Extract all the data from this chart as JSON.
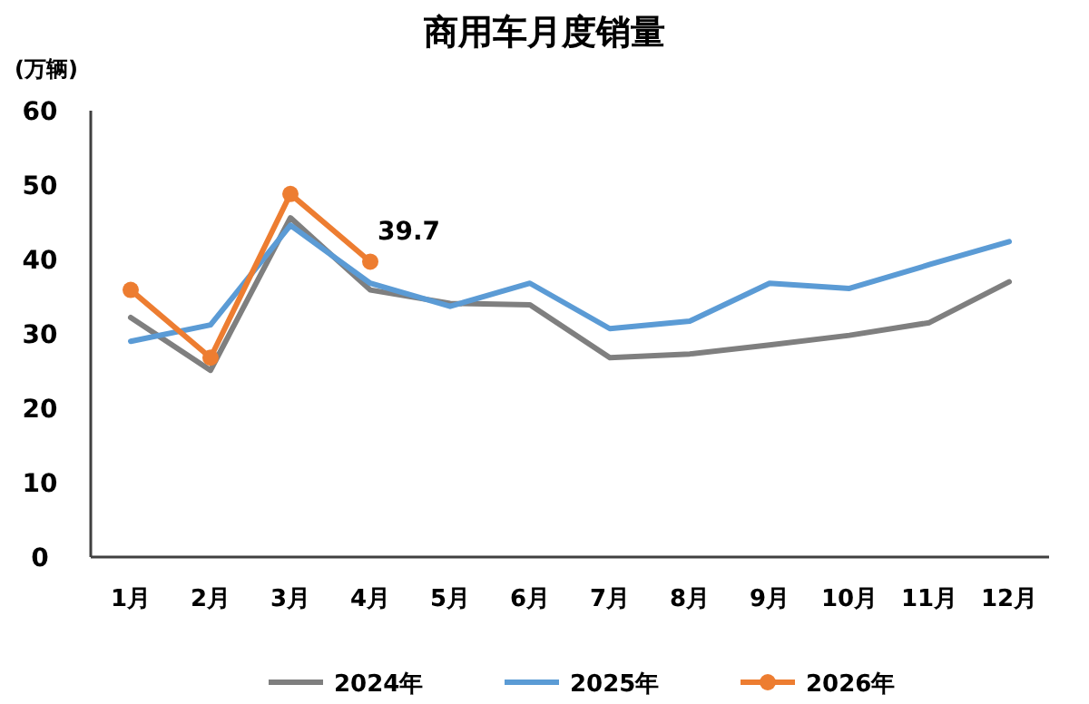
{
  "chart_data": {
    "type": "line",
    "title": "商用车月度销量",
    "ylabel": "(万辆)",
    "categories": [
      "1月",
      "2月",
      "3月",
      "4月",
      "5月",
      "6月",
      "7月",
      "8月",
      "9月",
      "10月",
      "11月",
      "12月"
    ],
    "ylim": [
      0,
      60
    ],
    "yticks": [
      0,
      10,
      20,
      30,
      40,
      50,
      60
    ],
    "grid": false,
    "legend": "bottom",
    "line_style": "solid",
    "series": [
      {
        "name": "2024年",
        "color": "#7f7f7f",
        "marker": "none",
        "values": [
          32.2,
          25.1,
          45.6,
          35.9,
          34.1,
          33.9,
          26.8,
          27.3,
          28.5,
          29.8,
          31.5,
          37.0
        ]
      },
      {
        "name": "2025年",
        "color": "#5b9bd5",
        "marker": "none",
        "values": [
          29.0,
          31.2,
          44.6,
          36.8,
          33.7,
          36.8,
          30.7,
          31.7,
          36.8,
          36.1,
          39.3,
          42.4
        ]
      },
      {
        "name": "2026年",
        "color": "#ed7d31",
        "marker": "circle",
        "values": [
          35.9,
          26.8,
          48.8,
          39.7,
          null,
          null,
          null,
          null,
          null,
          null,
          null,
          null
        ],
        "value_labels": [
          null,
          null,
          null,
          "39.7",
          null,
          null,
          null,
          null,
          null,
          null,
          null,
          null
        ]
      }
    ]
  }
}
